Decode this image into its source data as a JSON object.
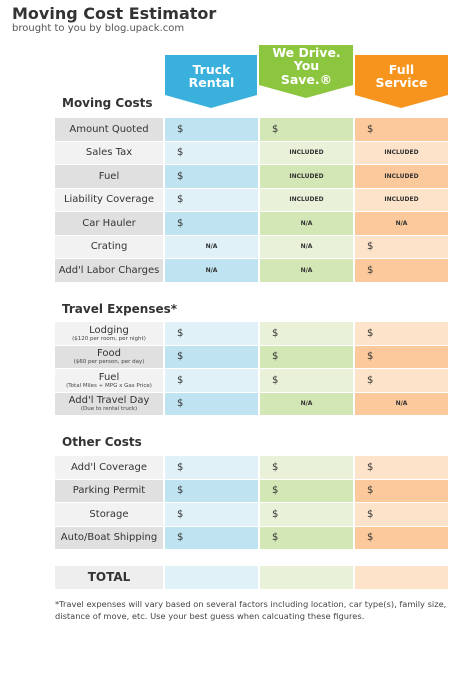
{
  "header": {
    "title": "Moving Cost Estimator",
    "subtitle": "brought to you by blog.upack.com"
  },
  "columns": [
    "Truck Rental",
    "We Drive. You Save.®",
    "Full Service"
  ],
  "sections": [
    {
      "title": "Moving Costs",
      "rows": [
        {
          "label": "Amount Quoted",
          "cells": [
            "$",
            "$",
            "$"
          ]
        },
        {
          "label": "Sales Tax",
          "cells": [
            "$",
            "INCLUDED",
            "INCLUDED"
          ]
        },
        {
          "label": "Fuel",
          "cells": [
            "$",
            "INCLUDED",
            "INCLUDED"
          ]
        },
        {
          "label": "Liability Coverage",
          "cells": [
            "$",
            "INCLUDED",
            "INCLUDED"
          ]
        },
        {
          "label": "Car Hauler",
          "cells": [
            "$",
            "N/A",
            "N/A"
          ]
        },
        {
          "label": "Crating",
          "cells": [
            "N/A",
            "N/A",
            "$"
          ]
        },
        {
          "label": "Add'l Labor Charges",
          "cells": [
            "N/A",
            "N/A",
            "$"
          ]
        }
      ]
    },
    {
      "title": "Travel Expenses*",
      "rows": [
        {
          "label": "Lodging",
          "sublabel": "($120 per room, per night)",
          "cells": [
            "$",
            "$",
            "$"
          ]
        },
        {
          "label": "Food",
          "sublabel": "($60 per person, per day)",
          "cells": [
            "$",
            "$",
            "$"
          ]
        },
        {
          "label": "Fuel",
          "sublabel": "(Total Miles ÷ MPG x Gas Price)",
          "cells": [
            "$",
            "$",
            "$"
          ]
        },
        {
          "label": "Add'l Travel Day",
          "sublabel": "(Due to rental truck)",
          "cells": [
            "$",
            "N/A",
            "N/A"
          ]
        }
      ]
    },
    {
      "title": "Other Costs",
      "rows": [
        {
          "label": "Add'l Coverage",
          "cells": [
            "$",
            "$",
            "$"
          ]
        },
        {
          "label": "Parking Permit",
          "cells": [
            "$",
            "$",
            "$"
          ]
        },
        {
          "label": "Storage",
          "cells": [
            "$",
            "$",
            "$"
          ]
        },
        {
          "label": "Auto/Boat Shipping",
          "cells": [
            "$",
            "$",
            "$"
          ]
        }
      ]
    }
  ],
  "total": {
    "label": "TOTAL"
  },
  "footnote": "*Travel expenses will vary based on several factors including location, car type(s), family size, distance of move, etc. Use your best guess when calcuating these figures."
}
